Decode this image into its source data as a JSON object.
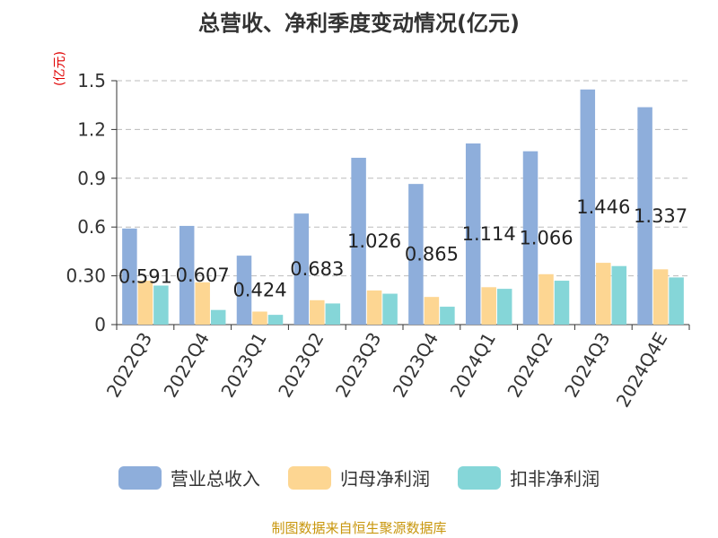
{
  "title": "总营收、净利季度变动情况(亿元)",
  "unit_label": "(亿元)",
  "source": "制图数据来自恒生聚源数据库",
  "colors": {
    "revenue": "#8eaedb",
    "net_profit": "#fdd692",
    "deducted_profit": "#85d6d8"
  },
  "chart_data": {
    "type": "bar",
    "title": "总营收、净利季度变动情况(亿元)",
    "ylabel": "(亿元)",
    "ylim": [
      0,
      1.5
    ],
    "yticks": [
      "0",
      "0.30",
      "0.6",
      "0.9",
      "1.2",
      "1.5"
    ],
    "grid": true,
    "legend_position": "bottom",
    "categories": [
      "2022Q3",
      "2022Q4",
      "2023Q1",
      "2023Q2",
      "2023Q3",
      "2023Q4",
      "2024Q1",
      "2024Q2",
      "2024Q3",
      "2024Q4E"
    ],
    "series": [
      {
        "name": "营业总收入",
        "values": [
          0.591,
          0.607,
          0.424,
          0.683,
          1.026,
          0.865,
          1.114,
          1.066,
          1.446,
          1.337
        ],
        "labels": [
          "0.591",
          "0.607",
          "0.424",
          "0.683",
          "1.026",
          "0.865",
          "1.114",
          "1.066",
          "1.446",
          "1.337"
        ]
      },
      {
        "name": "归母净利润",
        "values": [
          0.27,
          0.26,
          0.08,
          0.15,
          0.21,
          0.17,
          0.23,
          0.31,
          0.38,
          0.34
        ]
      },
      {
        "name": "扣非净利润",
        "values": [
          0.24,
          0.09,
          0.06,
          0.13,
          0.19,
          0.11,
          0.22,
          0.27,
          0.36,
          0.29
        ]
      }
    ]
  }
}
